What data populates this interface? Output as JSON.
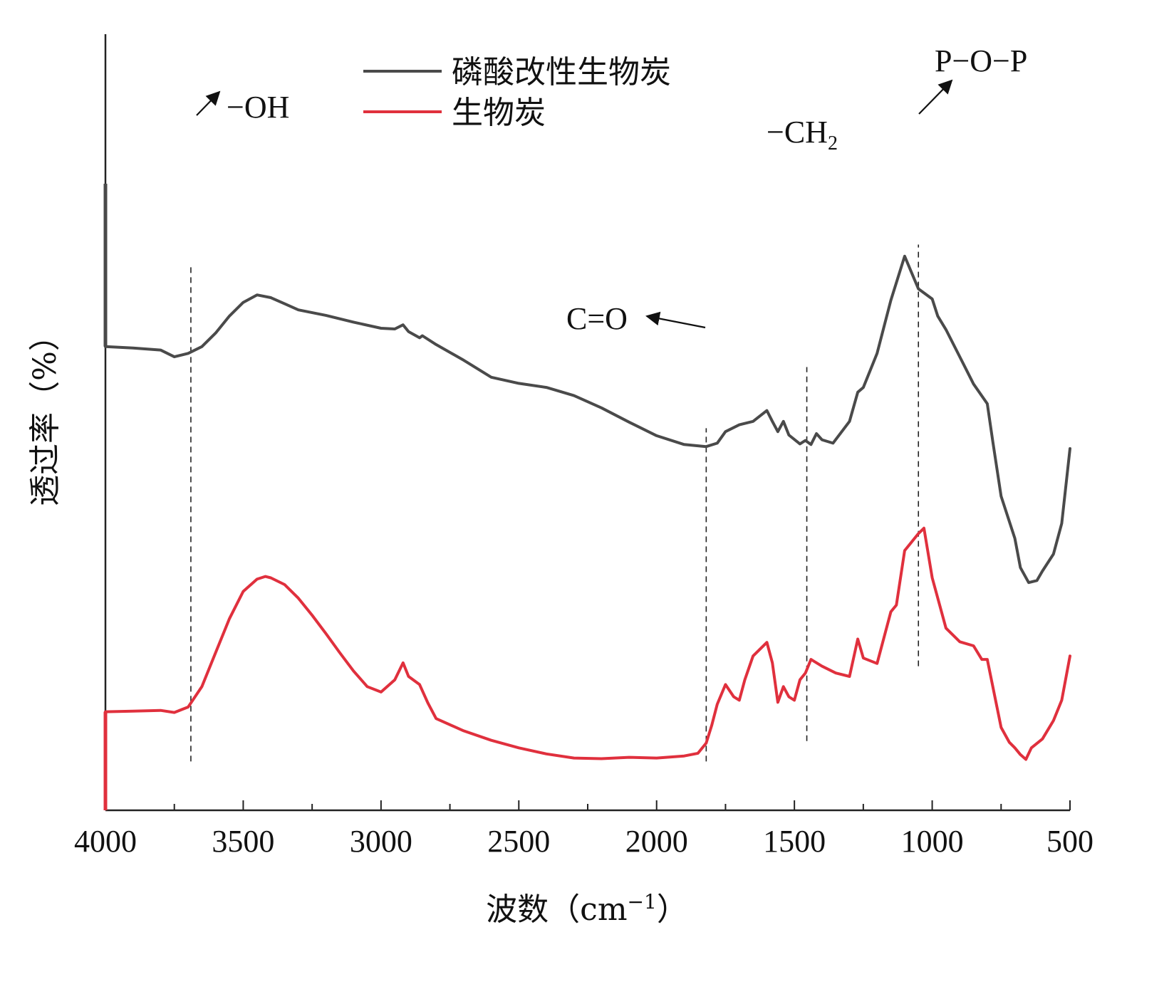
{
  "chart_data": {
    "type": "line",
    "title": "",
    "xlabel": "波数（cm",
    "xlabel_sup": "−1",
    "xlabel_close": "）",
    "ylabel": "透过率（%）",
    "xlim": [
      4000,
      500
    ],
    "x_reversed": true,
    "y_ticks_shown": false,
    "grid": false,
    "legend_position": "top-center",
    "x_ticks": [
      {
        "value": 4000,
        "label": "4000"
      },
      {
        "value": 3500,
        "label": "3500"
      },
      {
        "value": 3000,
        "label": "3000"
      },
      {
        "value": 2500,
        "label": "2500"
      },
      {
        "value": 2000,
        "label": "2000"
      },
      {
        "value": 1500,
        "label": "1500"
      },
      {
        "value": 1000,
        "label": "1000"
      },
      {
        "value": 500,
        "label": "500"
      }
    ],
    "x_minor_ticks": [
      3750,
      3250,
      2750,
      2250,
      1750,
      1250,
      750
    ],
    "series": [
      {
        "name": "磷酸改性生物炭",
        "color": "#4a4a4a",
        "points": [
          [
            4000,
            64.0
          ],
          [
            3900,
            63.8
          ],
          [
            3800,
            63.5
          ],
          [
            3750,
            62.5
          ],
          [
            3700,
            63.0
          ],
          [
            3650,
            64.0
          ],
          [
            3600,
            66.0
          ],
          [
            3550,
            68.5
          ],
          [
            3500,
            70.5
          ],
          [
            3450,
            71.6
          ],
          [
            3400,
            71.2
          ],
          [
            3350,
            70.3
          ],
          [
            3300,
            69.4
          ],
          [
            3200,
            68.6
          ],
          [
            3100,
            67.6
          ],
          [
            3000,
            66.7
          ],
          [
            2950,
            66.6
          ],
          [
            2920,
            67.2
          ],
          [
            2900,
            66.2
          ],
          [
            2860,
            65.3
          ],
          [
            2850,
            65.6
          ],
          [
            2800,
            64.3
          ],
          [
            2700,
            62.0
          ],
          [
            2600,
            59.5
          ],
          [
            2500,
            58.6
          ],
          [
            2400,
            58.0
          ],
          [
            2300,
            56.8
          ],
          [
            2200,
            55.0
          ],
          [
            2100,
            52.9
          ],
          [
            2000,
            50.9
          ],
          [
            1900,
            49.6
          ],
          [
            1820,
            49.3
          ],
          [
            1780,
            49.8
          ],
          [
            1750,
            51.5
          ],
          [
            1700,
            52.5
          ],
          [
            1650,
            53.0
          ],
          [
            1600,
            54.6
          ],
          [
            1580,
            53.0
          ],
          [
            1560,
            51.5
          ],
          [
            1540,
            53.0
          ],
          [
            1520,
            51.0
          ],
          [
            1480,
            49.7
          ],
          [
            1460,
            50.2
          ],
          [
            1440,
            49.6
          ],
          [
            1420,
            51.2
          ],
          [
            1400,
            50.3
          ],
          [
            1360,
            49.8
          ],
          [
            1300,
            53.0
          ],
          [
            1270,
            57.3
          ],
          [
            1250,
            58.0
          ],
          [
            1200,
            63.0
          ],
          [
            1150,
            70.8
          ],
          [
            1100,
            77.3
          ],
          [
            1050,
            72.5
          ],
          [
            1000,
            71.0
          ],
          [
            980,
            68.5
          ],
          [
            950,
            66.5
          ],
          [
            900,
            62.5
          ],
          [
            850,
            58.5
          ],
          [
            800,
            55.6
          ],
          [
            780,
            50.0
          ],
          [
            750,
            42.0
          ],
          [
            700,
            35.8
          ],
          [
            680,
            31.5
          ],
          [
            650,
            29.3
          ],
          [
            620,
            29.6
          ],
          [
            600,
            31.0
          ],
          [
            560,
            33.5
          ],
          [
            530,
            38.0
          ],
          [
            500,
            49.0
          ]
        ]
      },
      {
        "name": "生物炭",
        "color": "#e0303d",
        "points": [
          [
            4000,
            10.3
          ],
          [
            3900,
            10.4
          ],
          [
            3800,
            10.5
          ],
          [
            3750,
            10.2
          ],
          [
            3700,
            11.0
          ],
          [
            3650,
            14.0
          ],
          [
            3600,
            19.0
          ],
          [
            3550,
            24.0
          ],
          [
            3500,
            28.0
          ],
          [
            3450,
            29.8
          ],
          [
            3420,
            30.2
          ],
          [
            3400,
            30.0
          ],
          [
            3350,
            29.0
          ],
          [
            3300,
            27.0
          ],
          [
            3250,
            24.5
          ],
          [
            3200,
            21.8
          ],
          [
            3150,
            19.0
          ],
          [
            3100,
            16.3
          ],
          [
            3050,
            14.0
          ],
          [
            3000,
            13.2
          ],
          [
            2950,
            15.0
          ],
          [
            2920,
            17.5
          ],
          [
            2900,
            15.5
          ],
          [
            2860,
            14.3
          ],
          [
            2830,
            11.6
          ],
          [
            2800,
            9.3
          ],
          [
            2700,
            7.5
          ],
          [
            2600,
            6.1
          ],
          [
            2500,
            5.0
          ],
          [
            2400,
            4.1
          ],
          [
            2300,
            3.5
          ],
          [
            2200,
            3.4
          ],
          [
            2100,
            3.6
          ],
          [
            2000,
            3.5
          ],
          [
            1900,
            3.8
          ],
          [
            1850,
            4.2
          ],
          [
            1820,
            5.7
          ],
          [
            1800,
            8.3
          ],
          [
            1780,
            11.4
          ],
          [
            1750,
            14.3
          ],
          [
            1720,
            12.5
          ],
          [
            1700,
            12.0
          ],
          [
            1680,
            15.0
          ],
          [
            1650,
            18.5
          ],
          [
            1600,
            20.5
          ],
          [
            1580,
            17.5
          ],
          [
            1560,
            11.7
          ],
          [
            1540,
            14.0
          ],
          [
            1520,
            12.5
          ],
          [
            1500,
            12.0
          ],
          [
            1480,
            15.0
          ],
          [
            1460,
            16.0
          ],
          [
            1440,
            18.0
          ],
          [
            1400,
            17.0
          ],
          [
            1350,
            16.0
          ],
          [
            1300,
            15.5
          ],
          [
            1270,
            21.0
          ],
          [
            1250,
            18.2
          ],
          [
            1200,
            17.4
          ],
          [
            1150,
            25.0
          ],
          [
            1130,
            26.0
          ],
          [
            1100,
            34.0
          ],
          [
            1050,
            36.5
          ],
          [
            1030,
            37.3
          ],
          [
            1000,
            30.0
          ],
          [
            950,
            22.6
          ],
          [
            900,
            20.6
          ],
          [
            850,
            20.0
          ],
          [
            820,
            18.0
          ],
          [
            800,
            18.0
          ],
          [
            750,
            8.0
          ],
          [
            720,
            5.8
          ],
          [
            700,
            5.0
          ],
          [
            680,
            4.0
          ],
          [
            660,
            3.3
          ],
          [
            640,
            5.0
          ],
          [
            600,
            6.3
          ],
          [
            560,
            9.0
          ],
          [
            530,
            12.0
          ],
          [
            500,
            18.5
          ]
        ]
      }
    ],
    "annotations": [
      {
        "label": "−OH",
        "x": 3690,
        "line_y": [
          3.0,
          76.0
        ]
      },
      {
        "label": "C=O",
        "x": 1820,
        "line_y": [
          3.0,
          52.0
        ]
      },
      {
        "label": "−CH",
        "subscript": "2",
        "x": 1455,
        "line_y": [
          6.0,
          61.0
        ]
      },
      {
        "label": "P−O−P",
        "x": 1050,
        "line_y": [
          17.0,
          79.0
        ]
      }
    ]
  }
}
